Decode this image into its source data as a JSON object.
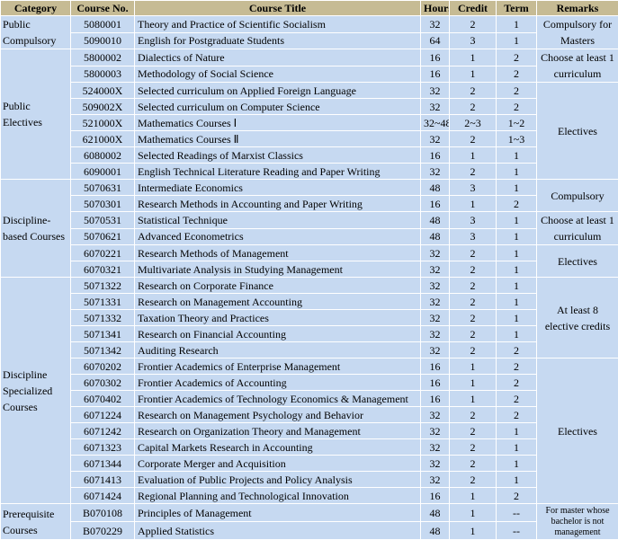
{
  "colors": {
    "header_bg": "#c6bb94",
    "cell_bg": "#c6d9f1",
    "border": "#ffffff"
  },
  "headers": [
    "Category",
    "Course No.",
    "Course Title",
    "Hours",
    "Credit",
    "Term",
    "Remarks"
  ],
  "categories": [
    {
      "label": "Public Compulsory",
      "rows": 2
    },
    {
      "label": "Public Electives",
      "rows": 8
    },
    {
      "label": "Discipline-based Courses",
      "rows": 6
    },
    {
      "label": "Discipline Specialized Courses",
      "rows": 14
    },
    {
      "label": "Prerequisite Courses",
      "rows": 2
    }
  ],
  "remarks": [
    {
      "text": "Compulsory for Masters",
      "rows": 2
    },
    {
      "text": "Choose at least 1 curriculum",
      "rows": 2
    },
    {
      "text": "Electives",
      "rows": 6
    },
    {
      "text": "Compulsory",
      "rows": 2
    },
    {
      "text": "Choose at least 1 curriculum",
      "rows": 2
    },
    {
      "text": "Electives",
      "rows": 2
    },
    {
      "text": "At least 8 elective credits",
      "rows": 5
    },
    {
      "text": "Electives",
      "rows": 9
    },
    {
      "text": "For master whose bachelor is not management",
      "rows": 2,
      "small": true
    }
  ],
  "courses": [
    {
      "no": "5080001",
      "title": "Theory and Practice of Scientific Socialism",
      "hours": "32",
      "credit": "2",
      "term": "1"
    },
    {
      "no": "5090010",
      "title": "English for Postgraduate Students",
      "hours": "64",
      "credit": "3",
      "term": "1"
    },
    {
      "no": "5800002",
      "title": "Dialectics of Nature",
      "hours": "16",
      "credit": "1",
      "term": "2"
    },
    {
      "no": "5800003",
      "title": "Methodology of Social Science",
      "hours": "16",
      "credit": "1",
      "term": "2"
    },
    {
      "no": "524000X",
      "title": "Selected curriculum on Applied Foreign Language",
      "hours": "32",
      "credit": "2",
      "term": "2"
    },
    {
      "no": "509002X",
      "title": "Selected curriculum on Computer Science",
      "hours": "32",
      "credit": "2",
      "term": "2"
    },
    {
      "no": "521000X",
      "title": "Mathematics Courses Ⅰ",
      "hours": "32~48",
      "credit": "2~3",
      "term": "1~2"
    },
    {
      "no": "621000X",
      "title": "Mathematics Courses Ⅱ",
      "hours": "32",
      "credit": "2",
      "term": "1~3"
    },
    {
      "no": "6080002",
      "title": "Selected Readings of Marxist Classics",
      "hours": "16",
      "credit": "1",
      "term": "1"
    },
    {
      "no": "6090001",
      "title": "English Technical Literature Reading and Paper Writing",
      "hours": "32",
      "credit": "2",
      "term": "1"
    },
    {
      "no": "5070631",
      "title": "Intermediate Economics",
      "hours": "48",
      "credit": "3",
      "term": "1"
    },
    {
      "no": "5070301",
      "title": "Research Methods in Accounting and Paper Writing",
      "hours": "16",
      "credit": "1",
      "term": "2"
    },
    {
      "no": "5070531",
      "title": "Statistical Technique",
      "hours": "48",
      "credit": "3",
      "term": "1"
    },
    {
      "no": "5070621",
      "title": "Advanced Econometrics",
      "hours": "48",
      "credit": "3",
      "term": "1"
    },
    {
      "no": "6070221",
      "title": "Research Methods of Management",
      "hours": "32",
      "credit": "2",
      "term": "1"
    },
    {
      "no": "6070321",
      "title": "Multivariate Analysis in Studying Management",
      "hours": "32",
      "credit": "2",
      "term": "1"
    },
    {
      "no": "5071322",
      "title": "Research on Corporate Finance",
      "hours": "32",
      "credit": "2",
      "term": "1"
    },
    {
      "no": "5071331",
      "title": "Research on Management Accounting",
      "hours": "32",
      "credit": "2",
      "term": "1"
    },
    {
      "no": "5071332",
      "title": "Taxation Theory and Practices",
      "hours": "32",
      "credit": "2",
      "term": "1"
    },
    {
      "no": "5071341",
      "title": "Research on Financial Accounting",
      "hours": "32",
      "credit": "2",
      "term": "1"
    },
    {
      "no": "5071342",
      "title": "Auditing Research",
      "hours": "32",
      "credit": "2",
      "term": "2"
    },
    {
      "no": "6070202",
      "title": "Frontier Academics of Enterprise Management",
      "hours": "16",
      "credit": "1",
      "term": "2"
    },
    {
      "no": "6070302",
      "title": "Frontier Academics of Accounting",
      "hours": "16",
      "credit": "1",
      "term": "2"
    },
    {
      "no": "6070402",
      "title": "Frontier Academics of Technology Economics & Management",
      "hours": "16",
      "credit": "1",
      "term": "2"
    },
    {
      "no": "6071224",
      "title": "Research on Management Psychology and Behavior",
      "hours": "32",
      "credit": "2",
      "term": "2"
    },
    {
      "no": "6071242",
      "title": "Research on Organization Theory and Management",
      "hours": "32",
      "credit": "2",
      "term": "1"
    },
    {
      "no": "6071323",
      "title": "Capital Markets Research in Accounting",
      "hours": "32",
      "credit": "2",
      "term": "1"
    },
    {
      "no": "6071344",
      "title": "Corporate Merger and Acquisition",
      "hours": "32",
      "credit": "2",
      "term": "1"
    },
    {
      "no": "6071413",
      "title": "Evaluation of Public Projects and Policy Analysis",
      "hours": "32",
      "credit": "2",
      "term": "1"
    },
    {
      "no": "6071424",
      "title": "Regional Planning and Technological Innovation",
      "hours": "16",
      "credit": "1",
      "term": "2"
    },
    {
      "no": "B070108",
      "title": "Principles of Management",
      "hours": "48",
      "credit": "1",
      "term": "--"
    },
    {
      "no": "B070229",
      "title": "Applied Statistics",
      "hours": "48",
      "credit": "1",
      "term": "--"
    }
  ]
}
